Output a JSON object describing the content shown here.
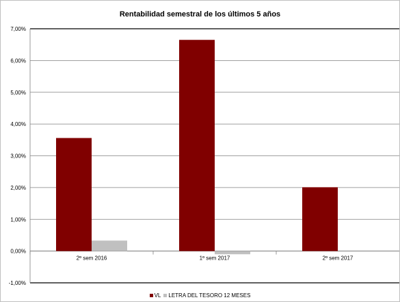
{
  "chart_data": {
    "type": "bar",
    "title": "Rentabilidad semestral de los últimos 5 años",
    "xlabel": "",
    "ylabel": "",
    "categories": [
      "2º sem 2016",
      "1º sem 2017",
      "2º sem 2017"
    ],
    "series": [
      {
        "name": "VL",
        "color": "#800000",
        "values": [
          3.56,
          6.65,
          2.01
        ]
      },
      {
        "name": "LETRA DEL TESORO 12 MESES",
        "color": "#c0c0c0",
        "values": [
          0.33,
          -0.1,
          null
        ]
      }
    ],
    "ylim": [
      -1,
      7
    ],
    "yticks": [
      -1,
      0,
      1,
      2,
      3,
      4,
      5,
      6,
      7
    ],
    "ytick_labels": [
      "-1,00%",
      "0,00%",
      "1,00%",
      "2,00%",
      "3,00%",
      "4,00%",
      "5,00%",
      "6,00%",
      "7,00%"
    ],
    "grid": true,
    "legend_position": "bottom"
  }
}
